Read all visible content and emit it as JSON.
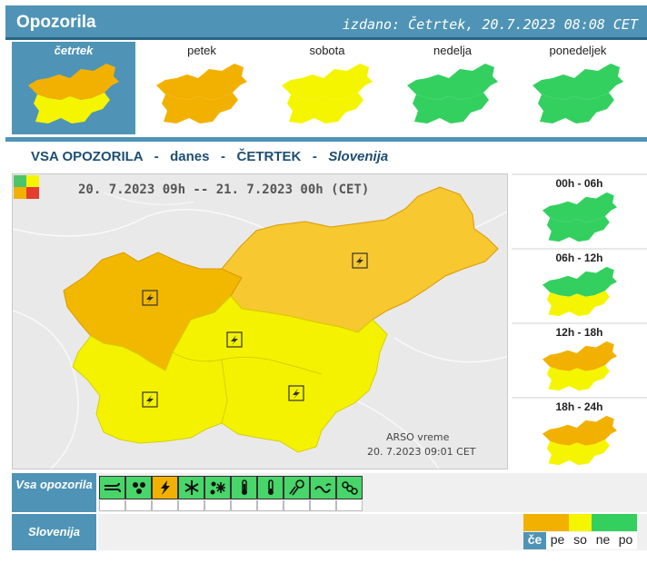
{
  "header": {
    "title": "Opozorila",
    "issued": "izdano: Četrtek, 20.7.2023 08:08 CET"
  },
  "days": [
    {
      "label": "četrtek",
      "level": "orange-yellow",
      "active": true
    },
    {
      "label": "petek",
      "level": "orange-yellow",
      "active": false
    },
    {
      "label": "sobota",
      "level": "yellow",
      "active": false
    },
    {
      "label": "nedelja",
      "level": "green",
      "active": false
    },
    {
      "label": "ponedeljek",
      "level": "green",
      "active": false
    }
  ],
  "title_line": {
    "all": "VSA OPOZORILA",
    "dash": "-",
    "today": "danes",
    "day": "ČETRTEK",
    "region": "Slovenija"
  },
  "map": {
    "range": "20. 7.2023 09h -- 21. 7.2023 00h (CET)",
    "source": "ARSO vreme",
    "timestamp": "20. 7.2023  09:01 CET",
    "phenomenon_icon": "lightning-icon"
  },
  "periods": [
    {
      "label": "00h - 06h",
      "level": "green"
    },
    {
      "label": "06h - 12h",
      "level": "green-yellow"
    },
    {
      "label": "12h - 18h",
      "level": "orange-yellow"
    },
    {
      "label": "18h - 24h",
      "level": "orange-yellow"
    }
  ],
  "rows": {
    "all_warnings": "Vsa opozorila",
    "slovenia": "Slovenija"
  },
  "phenomena": [
    {
      "icon": "wind-icon",
      "active": false
    },
    {
      "icon": "rain-icon",
      "active": false
    },
    {
      "icon": "lightning-icon",
      "active": true
    },
    {
      "icon": "snow-icon",
      "active": false
    },
    {
      "icon": "snow-ice-icon",
      "active": false
    },
    {
      "icon": "high-temperature-icon",
      "active": false
    },
    {
      "icon": "low-temperature-icon",
      "active": false
    },
    {
      "icon": "fog-icon",
      "active": false
    },
    {
      "icon": "coastal-icon",
      "active": false
    },
    {
      "icon": "avalanche-icon",
      "active": false
    }
  ],
  "mini_days": [
    {
      "label": "če",
      "color": "#f2b100",
      "active": true
    },
    {
      "label": "pe",
      "color": "#f2b100",
      "active": false
    },
    {
      "label": "so",
      "color": "#f5f500",
      "active": false
    },
    {
      "label": "ne",
      "color": "#33d060",
      "active": false
    },
    {
      "label": "po",
      "color": "#33d060",
      "active": false
    }
  ],
  "colors": {
    "green": "#33d060",
    "yellow": "#f5f500",
    "orange": "#f2b100",
    "header": "#4f94b6"
  }
}
